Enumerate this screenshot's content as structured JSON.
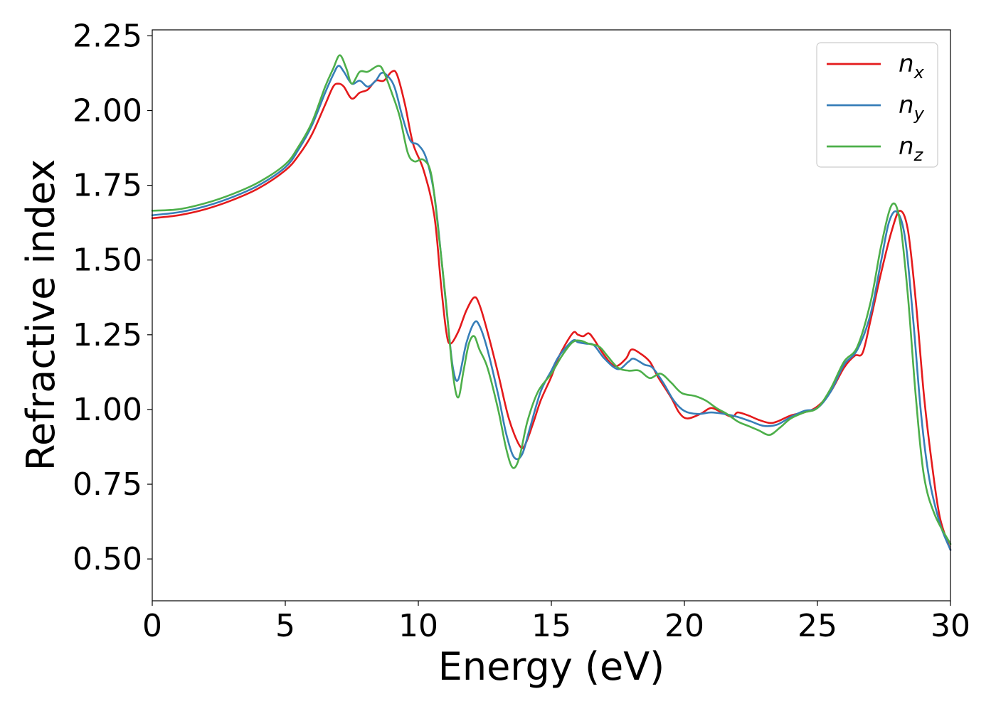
{
  "chart_data": {
    "type": "line",
    "xlabel": "Energy (eV)",
    "ylabel": "Refractive index",
    "xlim": [
      0,
      30
    ],
    "ylim": [
      0.36,
      2.27
    ],
    "xticks": [
      0,
      5,
      10,
      15,
      20,
      25,
      30
    ],
    "xtick_labels": [
      "0",
      "5",
      "10",
      "15",
      "20",
      "25",
      "30"
    ],
    "yticks": [
      0.5,
      0.75,
      1.0,
      1.25,
      1.5,
      1.75,
      2.0,
      2.25
    ],
    "ytick_labels": [
      "0.50",
      "0.75",
      "1.00",
      "1.25",
      "1.50",
      "1.75",
      "2.00",
      "2.25"
    ],
    "grid": false,
    "legend_position": "top-right",
    "series": [
      {
        "name": "n_x",
        "label_base": "n",
        "label_sub": "x",
        "color": "#e41a1c",
        "points": [
          [
            0,
            1.64
          ],
          [
            1,
            1.65
          ],
          [
            2,
            1.67
          ],
          [
            3,
            1.7
          ],
          [
            4,
            1.74
          ],
          [
            5,
            1.8
          ],
          [
            5.5,
            1.85
          ],
          [
            6,
            1.92
          ],
          [
            6.5,
            2.02
          ],
          [
            6.8,
            2.08
          ],
          [
            7,
            2.09
          ],
          [
            7.2,
            2.08
          ],
          [
            7.5,
            2.04
          ],
          [
            7.8,
            2.06
          ],
          [
            8.1,
            2.07
          ],
          [
            8.4,
            2.1
          ],
          [
            8.7,
            2.1
          ],
          [
            9,
            2.13
          ],
          [
            9.2,
            2.12
          ],
          [
            9.5,
            2.02
          ],
          [
            9.8,
            1.89
          ],
          [
            10.2,
            1.8
          ],
          [
            10.6,
            1.65
          ],
          [
            10.85,
            1.42
          ],
          [
            11.05,
            1.26
          ],
          [
            11.2,
            1.22
          ],
          [
            11.5,
            1.26
          ],
          [
            11.8,
            1.33
          ],
          [
            12.1,
            1.375
          ],
          [
            12.3,
            1.35
          ],
          [
            12.6,
            1.26
          ],
          [
            13,
            1.12
          ],
          [
            13.4,
            0.97
          ],
          [
            13.8,
            0.88
          ],
          [
            14,
            0.88
          ],
          [
            14.3,
            0.95
          ],
          [
            14.6,
            1.03
          ],
          [
            15,
            1.11
          ],
          [
            15.3,
            1.18
          ],
          [
            15.8,
            1.255
          ],
          [
            16,
            1.25
          ],
          [
            16.2,
            1.245
          ],
          [
            16.4,
            1.255
          ],
          [
            16.6,
            1.235
          ],
          [
            17,
            1.18
          ],
          [
            17.4,
            1.145
          ],
          [
            17.8,
            1.17
          ],
          [
            18,
            1.2
          ],
          [
            18.3,
            1.19
          ],
          [
            18.7,
            1.16
          ],
          [
            19,
            1.11
          ],
          [
            19.5,
            1.04
          ],
          [
            19.8,
            0.99
          ],
          [
            20.1,
            0.97
          ],
          [
            20.6,
            0.985
          ],
          [
            21,
            1.005
          ],
          [
            21.4,
            0.99
          ],
          [
            21.8,
            0.975
          ],
          [
            22,
            0.99
          ],
          [
            22.4,
            0.98
          ],
          [
            22.8,
            0.965
          ],
          [
            23.2,
            0.955
          ],
          [
            23.5,
            0.96
          ],
          [
            24,
            0.98
          ],
          [
            24.5,
            0.99
          ],
          [
            25,
            1.01
          ],
          [
            25.5,
            1.06
          ],
          [
            26,
            1.14
          ],
          [
            26.4,
            1.18
          ],
          [
            26.7,
            1.19
          ],
          [
            27,
            1.3
          ],
          [
            27.4,
            1.46
          ],
          [
            27.8,
            1.6
          ],
          [
            28.1,
            1.665
          ],
          [
            28.4,
            1.6
          ],
          [
            28.7,
            1.36
          ],
          [
            29,
            1.05
          ],
          [
            29.3,
            0.82
          ],
          [
            29.6,
            0.64
          ],
          [
            30,
            0.53
          ]
        ]
      },
      {
        "name": "n_y",
        "label_base": "n",
        "label_sub": "y",
        "color": "#377eb8",
        "points": [
          [
            0,
            1.65
          ],
          [
            1,
            1.66
          ],
          [
            2,
            1.68
          ],
          [
            3,
            1.71
          ],
          [
            4,
            1.75
          ],
          [
            5,
            1.81
          ],
          [
            5.5,
            1.87
          ],
          [
            6,
            1.95
          ],
          [
            6.5,
            2.06
          ],
          [
            6.8,
            2.12
          ],
          [
            7,
            2.15
          ],
          [
            7.2,
            2.13
          ],
          [
            7.5,
            2.09
          ],
          [
            7.8,
            2.1
          ],
          [
            8.1,
            2.08
          ],
          [
            8.4,
            2.1
          ],
          [
            8.6,
            2.125
          ],
          [
            8.8,
            2.12
          ],
          [
            9.1,
            2.08
          ],
          [
            9.4,
            1.98
          ],
          [
            9.7,
            1.9
          ],
          [
            10,
            1.885
          ],
          [
            10.3,
            1.84
          ],
          [
            10.6,
            1.72
          ],
          [
            10.85,
            1.52
          ],
          [
            11.1,
            1.3
          ],
          [
            11.3,
            1.14
          ],
          [
            11.5,
            1.1
          ],
          [
            11.8,
            1.22
          ],
          [
            12.1,
            1.29
          ],
          [
            12.3,
            1.28
          ],
          [
            12.6,
            1.2
          ],
          [
            13,
            1.05
          ],
          [
            13.3,
            0.92
          ],
          [
            13.6,
            0.84
          ],
          [
            13.9,
            0.85
          ],
          [
            14.2,
            0.94
          ],
          [
            14.6,
            1.06
          ],
          [
            15,
            1.13
          ],
          [
            15.3,
            1.18
          ],
          [
            15.8,
            1.23
          ],
          [
            16,
            1.225
          ],
          [
            16.3,
            1.22
          ],
          [
            16.6,
            1.215
          ],
          [
            17,
            1.17
          ],
          [
            17.5,
            1.135
          ],
          [
            17.9,
            1.16
          ],
          [
            18.1,
            1.17
          ],
          [
            18.5,
            1.15
          ],
          [
            18.8,
            1.14
          ],
          [
            19.2,
            1.09
          ],
          [
            19.6,
            1.03
          ],
          [
            20,
            0.995
          ],
          [
            20.5,
            0.985
          ],
          [
            21,
            0.99
          ],
          [
            21.5,
            0.985
          ],
          [
            22,
            0.975
          ],
          [
            22.5,
            0.96
          ],
          [
            23,
            0.945
          ],
          [
            23.5,
            0.95
          ],
          [
            24,
            0.975
          ],
          [
            24.5,
            0.995
          ],
          [
            25,
            1.005
          ],
          [
            25.5,
            1.06
          ],
          [
            26,
            1.15
          ],
          [
            26.5,
            1.2
          ],
          [
            27,
            1.32
          ],
          [
            27.4,
            1.5
          ],
          [
            27.7,
            1.63
          ],
          [
            28,
            1.66
          ],
          [
            28.3,
            1.57
          ],
          [
            28.6,
            1.3
          ],
          [
            28.9,
            0.98
          ],
          [
            29.2,
            0.77
          ],
          [
            29.6,
            0.62
          ],
          [
            30,
            0.53
          ]
        ]
      },
      {
        "name": "n_z",
        "label_base": "n",
        "label_sub": "z",
        "color": "#4daf4a",
        "points": [
          [
            0,
            1.665
          ],
          [
            1,
            1.67
          ],
          [
            2,
            1.69
          ],
          [
            3,
            1.72
          ],
          [
            4,
            1.76
          ],
          [
            5,
            1.82
          ],
          [
            5.5,
            1.88
          ],
          [
            6,
            1.96
          ],
          [
            6.5,
            2.08
          ],
          [
            6.8,
            2.14
          ],
          [
            7.05,
            2.185
          ],
          [
            7.3,
            2.14
          ],
          [
            7.5,
            2.09
          ],
          [
            7.8,
            2.13
          ],
          [
            8.1,
            2.13
          ],
          [
            8.5,
            2.15
          ],
          [
            8.7,
            2.13
          ],
          [
            9,
            2.06
          ],
          [
            9.3,
            1.98
          ],
          [
            9.6,
            1.86
          ],
          [
            9.85,
            1.83
          ],
          [
            10.2,
            1.835
          ],
          [
            10.5,
            1.78
          ],
          [
            10.8,
            1.56
          ],
          [
            11.05,
            1.35
          ],
          [
            11.3,
            1.12
          ],
          [
            11.5,
            1.04
          ],
          [
            11.7,
            1.13
          ],
          [
            11.9,
            1.22
          ],
          [
            12.1,
            1.245
          ],
          [
            12.3,
            1.2
          ],
          [
            12.6,
            1.14
          ],
          [
            13,
            1.0
          ],
          [
            13.3,
            0.87
          ],
          [
            13.55,
            0.805
          ],
          [
            13.8,
            0.84
          ],
          [
            14.1,
            0.96
          ],
          [
            14.5,
            1.06
          ],
          [
            15,
            1.12
          ],
          [
            15.4,
            1.18
          ],
          [
            15.8,
            1.225
          ],
          [
            16.1,
            1.23
          ],
          [
            16.4,
            1.22
          ],
          [
            16.8,
            1.21
          ],
          [
            17.1,
            1.18
          ],
          [
            17.5,
            1.14
          ],
          [
            17.9,
            1.13
          ],
          [
            18.3,
            1.13
          ],
          [
            18.7,
            1.105
          ],
          [
            19.1,
            1.12
          ],
          [
            19.5,
            1.09
          ],
          [
            19.9,
            1.055
          ],
          [
            20.4,
            1.045
          ],
          [
            20.8,
            1.03
          ],
          [
            21.2,
            1.005
          ],
          [
            21.6,
            0.985
          ],
          [
            22,
            0.96
          ],
          [
            22.4,
            0.945
          ],
          [
            22.8,
            0.93
          ],
          [
            23.2,
            0.915
          ],
          [
            23.6,
            0.94
          ],
          [
            24,
            0.97
          ],
          [
            24.5,
            0.99
          ],
          [
            25,
            1.005
          ],
          [
            25.5,
            1.07
          ],
          [
            26,
            1.16
          ],
          [
            26.5,
            1.21
          ],
          [
            27,
            1.36
          ],
          [
            27.4,
            1.55
          ],
          [
            27.8,
            1.685
          ],
          [
            28.1,
            1.63
          ],
          [
            28.4,
            1.38
          ],
          [
            28.7,
            1.04
          ],
          [
            29,
            0.78
          ],
          [
            29.4,
            0.65
          ],
          [
            30,
            0.55
          ]
        ]
      }
    ]
  }
}
